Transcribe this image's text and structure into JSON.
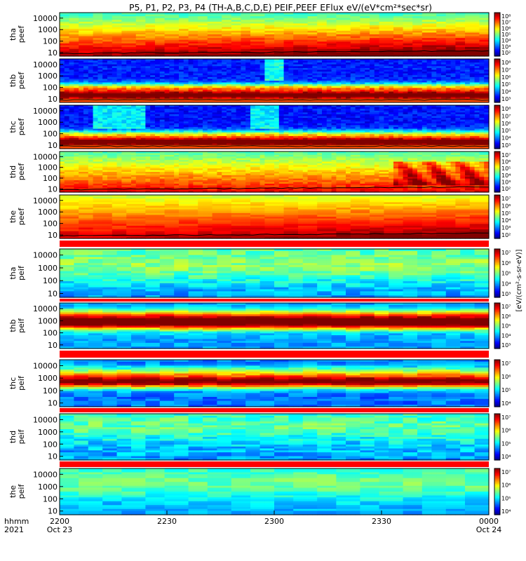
{
  "title": "P5, P1, P2, P3, P4 (TH-A,B,C,D,E) PEIF,PEEF EFlux eV/(eV*cm²*sec*sr)",
  "chart_data": {
    "type": "heatmap",
    "title": "P5, P1, P2, P3, P4 (TH-A,B,C,D,E) PEIF,PEEF EFlux eV/(eV*cm²*sec*sr)",
    "x_axis": {
      "label_rows": [
        "hhmm",
        "2021"
      ],
      "ticks": [
        {
          "time": "2200",
          "date": "Oct 23"
        },
        {
          "time": "2230",
          "date": ""
        },
        {
          "time": "2300",
          "date": ""
        },
        {
          "time": "2330",
          "date": ""
        },
        {
          "time": "0000",
          "date": "Oct 24"
        }
      ]
    },
    "colorbar_label": "[eV/(cm²-s-sr-eV)]",
    "panels": [
      {
        "probe": "tha",
        "product": "peef",
        "kind": "electron",
        "scale": "log",
        "yticks": [
          "10000",
          "1000",
          "100",
          "10"
        ],
        "ylim_eV": [
          5,
          30000
        ],
        "cbar_ticks": [
          "10⁸",
          "10⁷",
          "10⁶",
          "10⁵",
          "10⁴",
          "10³",
          "10²"
        ]
      },
      {
        "probe": "thb",
        "product": "peef",
        "kind": "electron",
        "scale": "log",
        "yticks": [
          "10000",
          "1000",
          "100",
          "10"
        ],
        "ylim_eV": [
          5,
          30000
        ],
        "cbar_ticks": [
          "10⁸",
          "10⁷",
          "10⁶",
          "10⁵",
          "10⁴",
          "10³"
        ]
      },
      {
        "probe": "thc",
        "product": "peef",
        "kind": "electron",
        "scale": "log",
        "yticks": [
          "10000",
          "1000",
          "100",
          "10"
        ],
        "ylim_eV": [
          5,
          30000
        ],
        "cbar_ticks": [
          "10⁸",
          "10⁷",
          "10⁶",
          "10⁵",
          "10⁴",
          "10³"
        ]
      },
      {
        "probe": "thd",
        "product": "peef",
        "kind": "electron",
        "scale": "log",
        "yticks": [
          "10000",
          "1000",
          "100",
          "10"
        ],
        "ylim_eV": [
          5,
          30000
        ],
        "cbar_ticks": [
          "10⁷",
          "10⁶",
          "10⁵",
          "10⁴",
          "10³",
          "10²"
        ]
      },
      {
        "probe": "the",
        "product": "peef",
        "kind": "electron",
        "scale": "log",
        "yticks": [
          "10000",
          "1000",
          "100",
          "10"
        ],
        "ylim_eV": [
          5,
          30000
        ],
        "cbar_ticks": [
          "10⁷",
          "10⁶",
          "10⁵",
          "10⁴",
          "10³",
          "10²"
        ]
      },
      {
        "probe": "tha",
        "product": "peif",
        "kind": "ion",
        "scale": "log",
        "yticks": [
          "10000",
          "1000",
          "100",
          "10"
        ],
        "ylim_eV": [
          5,
          30000
        ],
        "cbar_ticks": [
          "10⁷",
          "10⁶",
          "10⁵",
          "10⁴",
          "10³"
        ]
      },
      {
        "probe": "thb",
        "product": "peif",
        "kind": "ion",
        "scale": "log",
        "yticks": [
          "10000",
          "1000",
          "100",
          "10"
        ],
        "ylim_eV": [
          5,
          30000
        ],
        "cbar_ticks": [
          "10⁷",
          "10⁶",
          "10⁵",
          "10⁴",
          "10³"
        ]
      },
      {
        "probe": "thc",
        "product": "peif",
        "kind": "ion",
        "scale": "log",
        "yticks": [
          "10000",
          "1000",
          "100",
          "10"
        ],
        "ylim_eV": [
          5,
          30000
        ],
        "cbar_ticks": [
          "10⁷",
          "10⁶",
          "10⁵",
          "10⁴"
        ]
      },
      {
        "probe": "thd",
        "product": "peif",
        "kind": "ion",
        "scale": "log",
        "yticks": [
          "10000",
          "1000",
          "100",
          "10"
        ],
        "ylim_eV": [
          5,
          30000
        ],
        "cbar_ticks": [
          "10⁷",
          "10⁶",
          "10⁵",
          "10⁴"
        ]
      },
      {
        "probe": "the",
        "product": "peif",
        "kind": "ion",
        "scale": "log",
        "yticks": [
          "10000",
          "1000",
          "100",
          "10"
        ],
        "ylim_eV": [
          5,
          30000
        ],
        "cbar_ticks": [
          "10⁷",
          "10⁶",
          "10⁵",
          "10⁴"
        ]
      }
    ]
  }
}
